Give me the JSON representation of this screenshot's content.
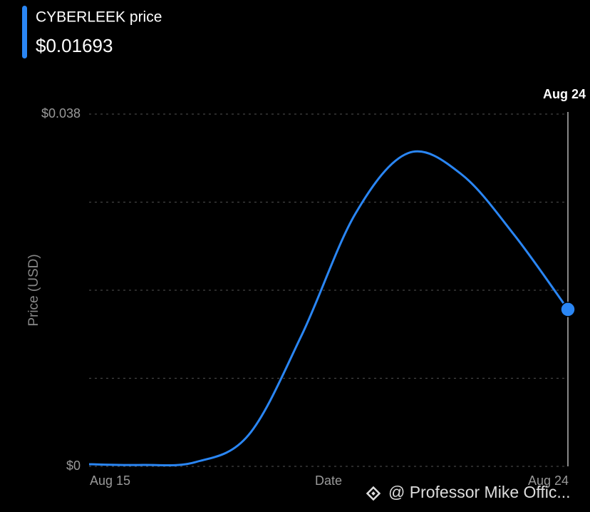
{
  "chart_data": {
    "type": "line",
    "title": "CYBERLEEK price",
    "price_label": "$0.01693",
    "x_label": "Date",
    "y_label": "Price (USD)",
    "categories": [
      "Aug 15",
      null,
      null,
      null,
      null,
      null,
      null,
      null,
      null,
      "Aug 24"
    ],
    "series": [
      {
        "name": "CYBERLEEK price",
        "color": "#2a86f4",
        "values": [
          0.00023,
          0.00015,
          0.00046,
          0.0034,
          0.0142,
          0.0272,
          0.0338,
          0.0315,
          0.0249,
          0.01693
        ]
      }
    ],
    "ylim": [
      0,
      0.038
    ],
    "yticks": [
      {
        "value": 0,
        "label": "$0"
      },
      {
        "value": 0.0095,
        "label": null
      },
      {
        "value": 0.019,
        "label": null
      },
      {
        "value": 0.0285,
        "label": null
      },
      {
        "value": 0.038,
        "label": "$0.038"
      }
    ],
    "grid": true,
    "watermark": "@ Professor Mike Offic..."
  }
}
